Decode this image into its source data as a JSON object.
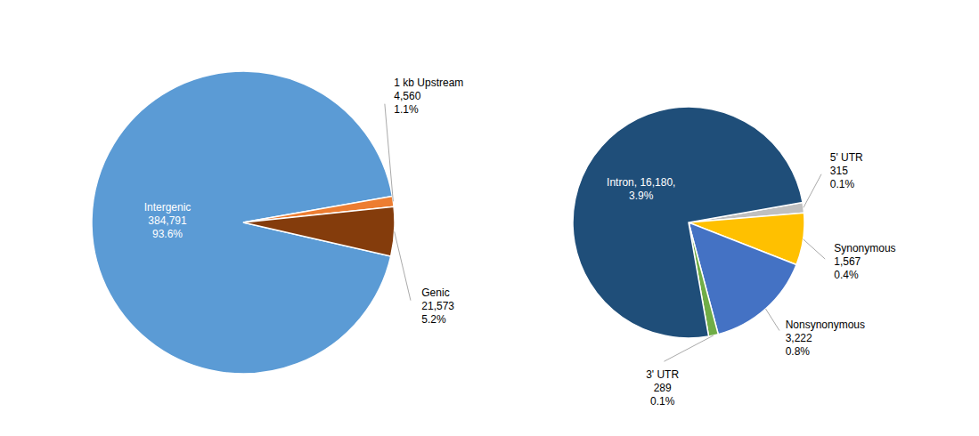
{
  "chart_data": [
    {
      "type": "pie",
      "categories": [
        "Intergenic",
        "1 kb Upstream",
        "Genic"
      ],
      "values": [
        384791,
        4560,
        21573
      ],
      "value_labels": [
        "Intergenic\n384,791\n93.6%",
        "1 kb Upstream\n4,560\n1.1%",
        "Genic\n21,573\n5.2%"
      ],
      "colors": [
        "#5B9BD5",
        "#ED7D31",
        "#843C0C"
      ]
    },
    {
      "type": "pie",
      "categories": [
        "5' UTR",
        "Synonymous",
        "Nonsynonymous",
        "3' UTR",
        "Intron"
      ],
      "values": [
        315,
        1567,
        3222,
        289,
        16180
      ],
      "value_labels": [
        "5' UTR\n315\n0.1%",
        "Synonymous\n1,567\n0.4%",
        "Nonsynonymous\n3,222\n0.8%",
        "3' UTR\n289\n0.1%",
        "Intron, 16,180,\n3.9%"
      ],
      "colors": [
        "#BFBFBF",
        "#FFC000",
        "#4472C4",
        "#70AD47",
        "#1F4E79"
      ]
    }
  ]
}
